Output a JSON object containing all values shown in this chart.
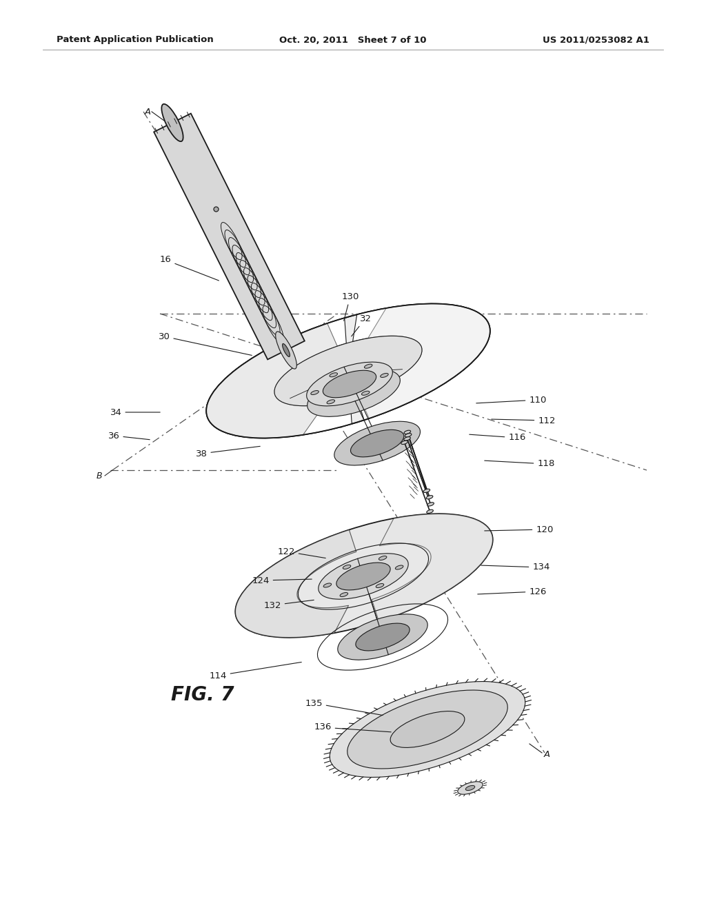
{
  "bg": "#ffffff",
  "lc": "#1a1a1a",
  "lc_light": "#666666",
  "header_left": "Patent Application Publication",
  "header_center": "Oct. 20, 2011   Sheet 7 of 10",
  "header_right": "US 2011/0253082 A1",
  "fig_label": "FIG. 7",
  "gray_fill": "#e8e8e8",
  "gray_mid": "#d0d0d0",
  "gray_dark": "#b8b8b8",
  "gray_light": "#f0f0f0",
  "shade1": "#c8c8c8",
  "shade2": "#a8a8a8"
}
